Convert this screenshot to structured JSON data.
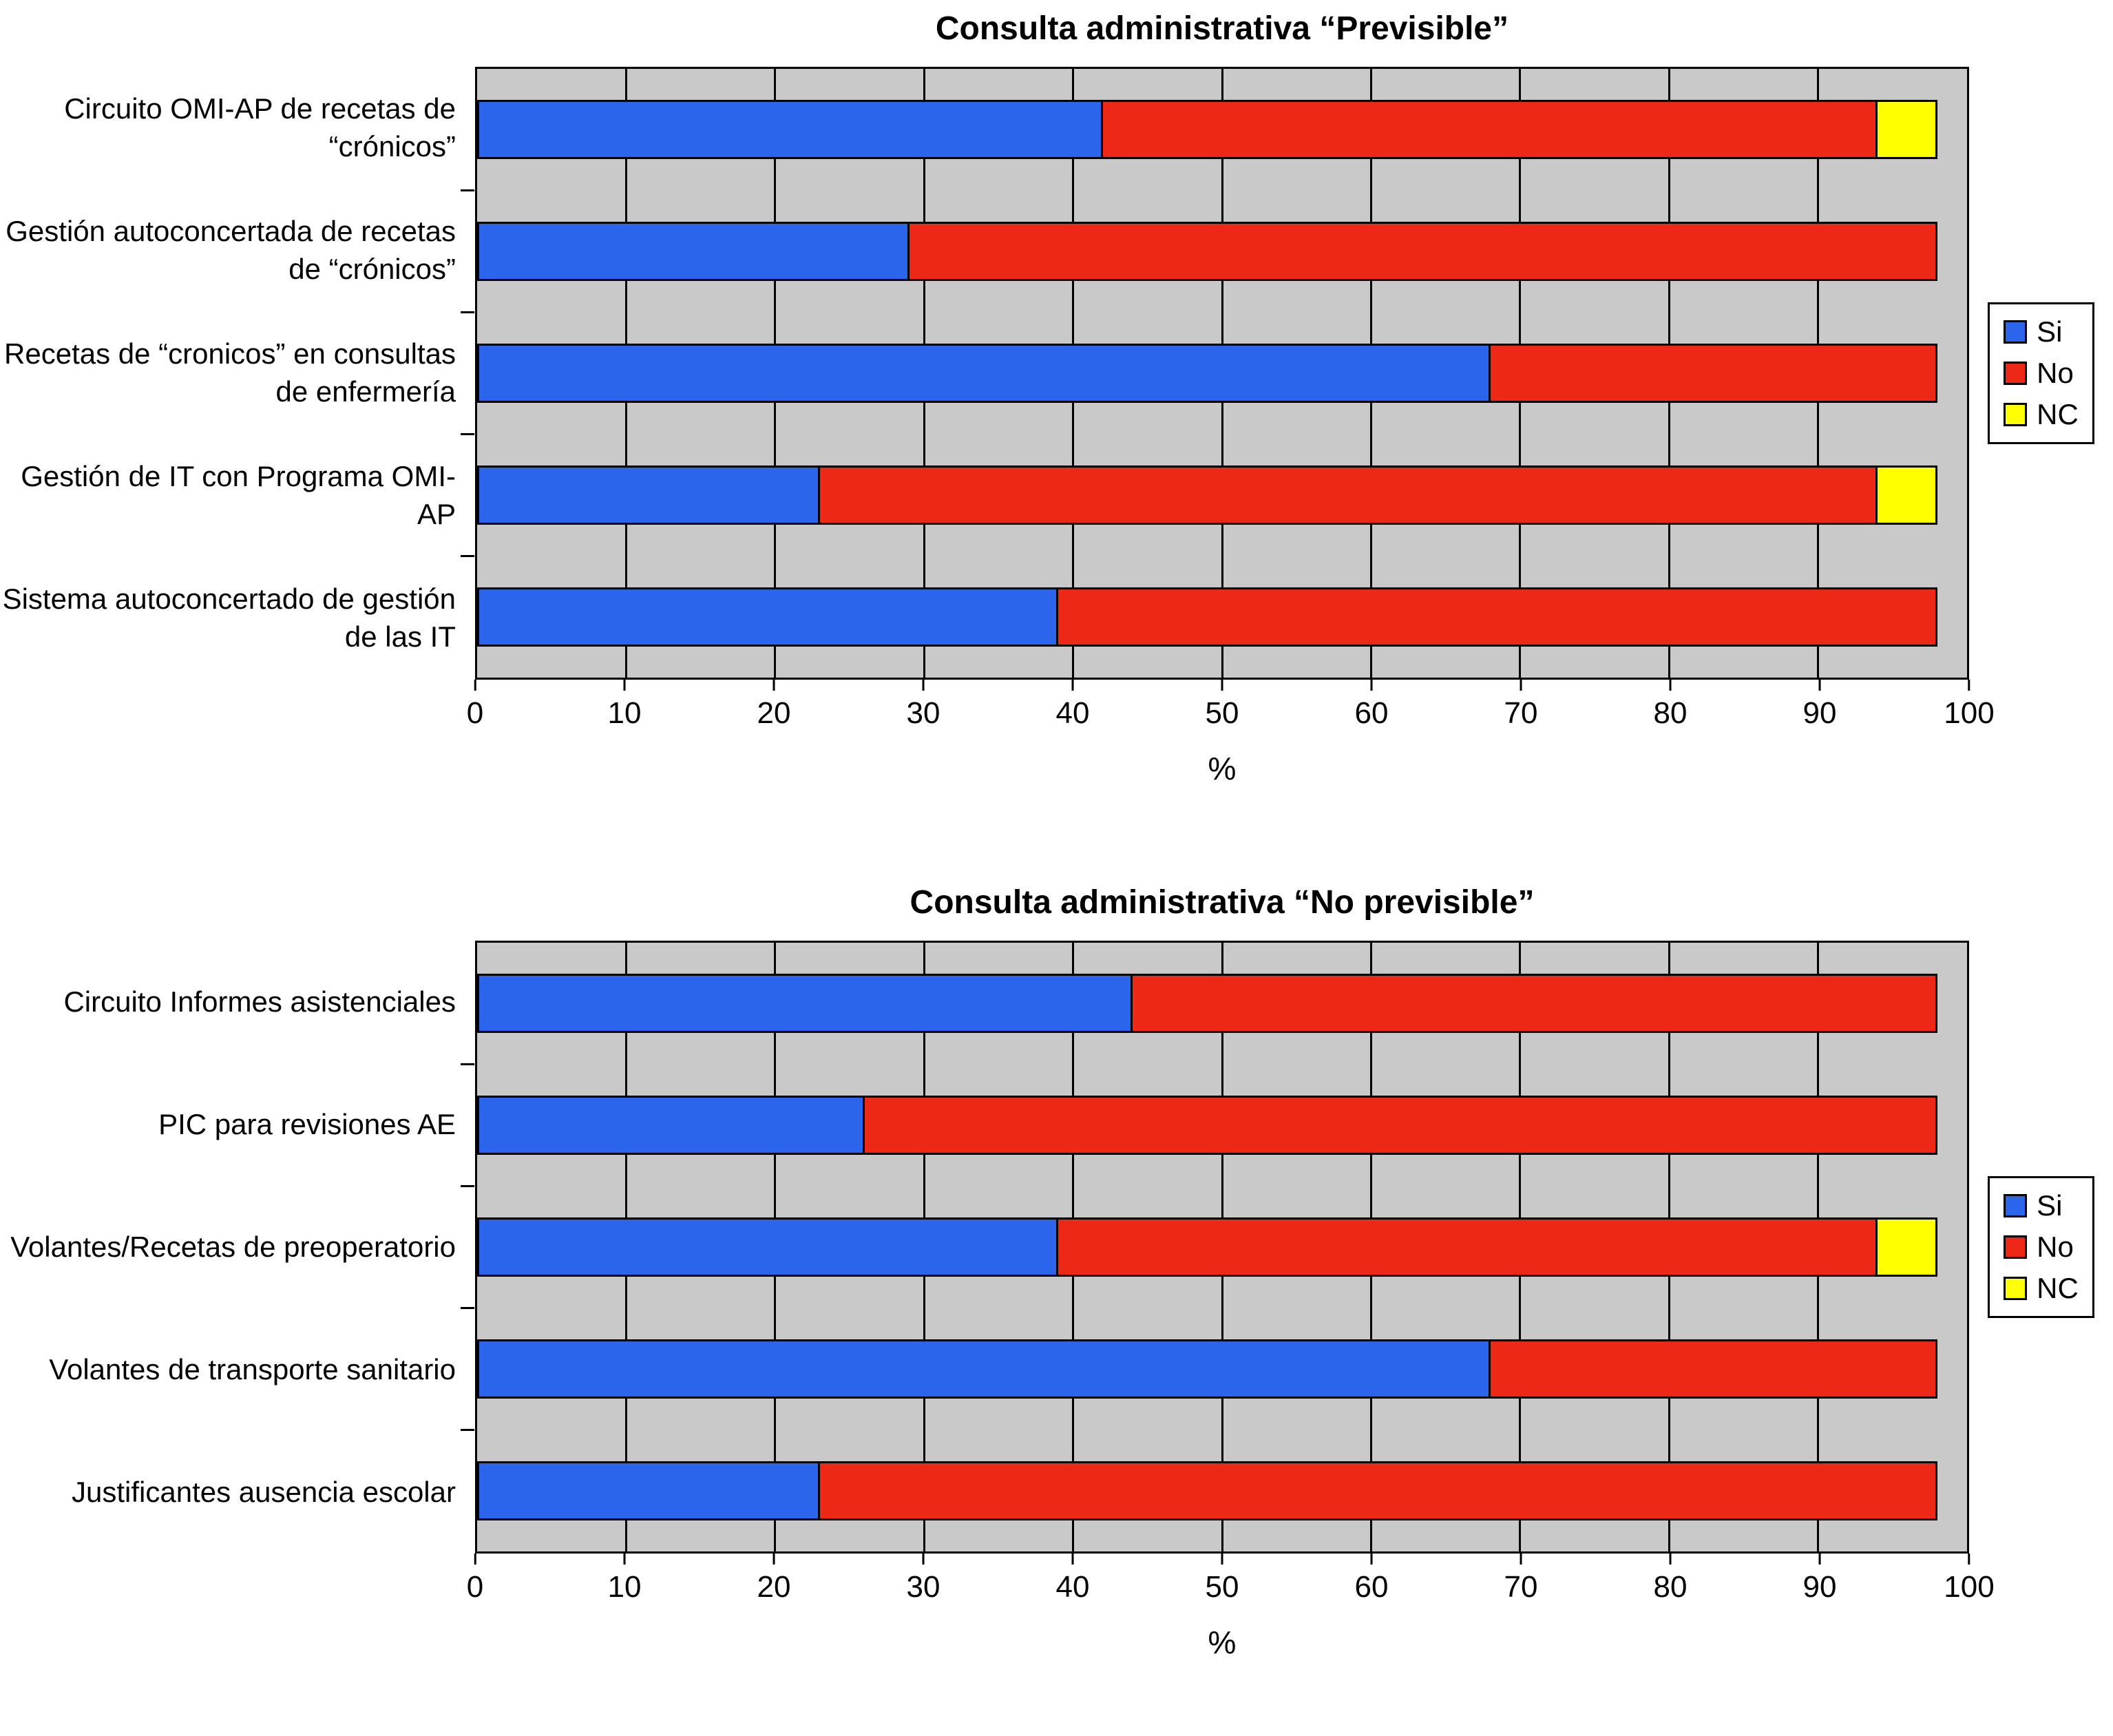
{
  "page": {
    "background": "#ffffff"
  },
  "chart_data": [
    {
      "type": "bar",
      "orientation": "horizontal",
      "stacked": true,
      "title": "Consulta administrativa “Previsible”",
      "xlabel": "%",
      "xlim": [
        0,
        100
      ],
      "xticks": [
        0,
        10,
        20,
        30,
        40,
        50,
        60,
        70,
        80,
        90,
        100
      ],
      "grid": "vertical",
      "plot_background": "#c9c9c9",
      "legend_position": "right",
      "legend_labels": [
        "Si",
        "No",
        "NC"
      ],
      "categories": [
        "Circuito OMI-AP de recetas de “crónicos”",
        "Gestión autoconcertada de recetas de “crónicos”",
        "Recetas de “cronicos” en consultas de enfermería",
        "Gestión de IT con Programa OMI-AP",
        "Sistema autoconcertado de gestión de las IT"
      ],
      "series": [
        {
          "name": "Si",
          "color": "#2b65ec",
          "values": [
            42,
            29,
            68,
            23,
            39
          ]
        },
        {
          "name": "No",
          "color": "#ee2816",
          "values": [
            52,
            69,
            30,
            71,
            59
          ]
        },
        {
          "name": "NC",
          "color": "#ffff00",
          "values": [
            4,
            0,
            0,
            4,
            0
          ]
        }
      ]
    },
    {
      "type": "bar",
      "orientation": "horizontal",
      "stacked": true,
      "title": "Consulta administrativa “No previsible”",
      "xlabel": "%",
      "xlim": [
        0,
        100
      ],
      "xticks": [
        0,
        10,
        20,
        30,
        40,
        50,
        60,
        70,
        80,
        90,
        100
      ],
      "grid": "vertical",
      "plot_background": "#c9c9c9",
      "legend_position": "right",
      "legend_labels": [
        "Si",
        "No",
        "NC"
      ],
      "categories": [
        "Circuito Informes asistenciales",
        "PIC para revisiones AE",
        "Volantes/Recetas de preoperatorio",
        "Volantes de transporte sanitario",
        "Justificantes ausencia escolar"
      ],
      "series": [
        {
          "name": "Si",
          "color": "#2b65ec",
          "values": [
            44,
            26,
            39,
            68,
            23
          ]
        },
        {
          "name": "No",
          "color": "#ee2816",
          "values": [
            54,
            72,
            55,
            30,
            75
          ]
        },
        {
          "name": "NC",
          "color": "#ffff00",
          "values": [
            0,
            0,
            4,
            0,
            0
          ]
        }
      ]
    }
  ]
}
